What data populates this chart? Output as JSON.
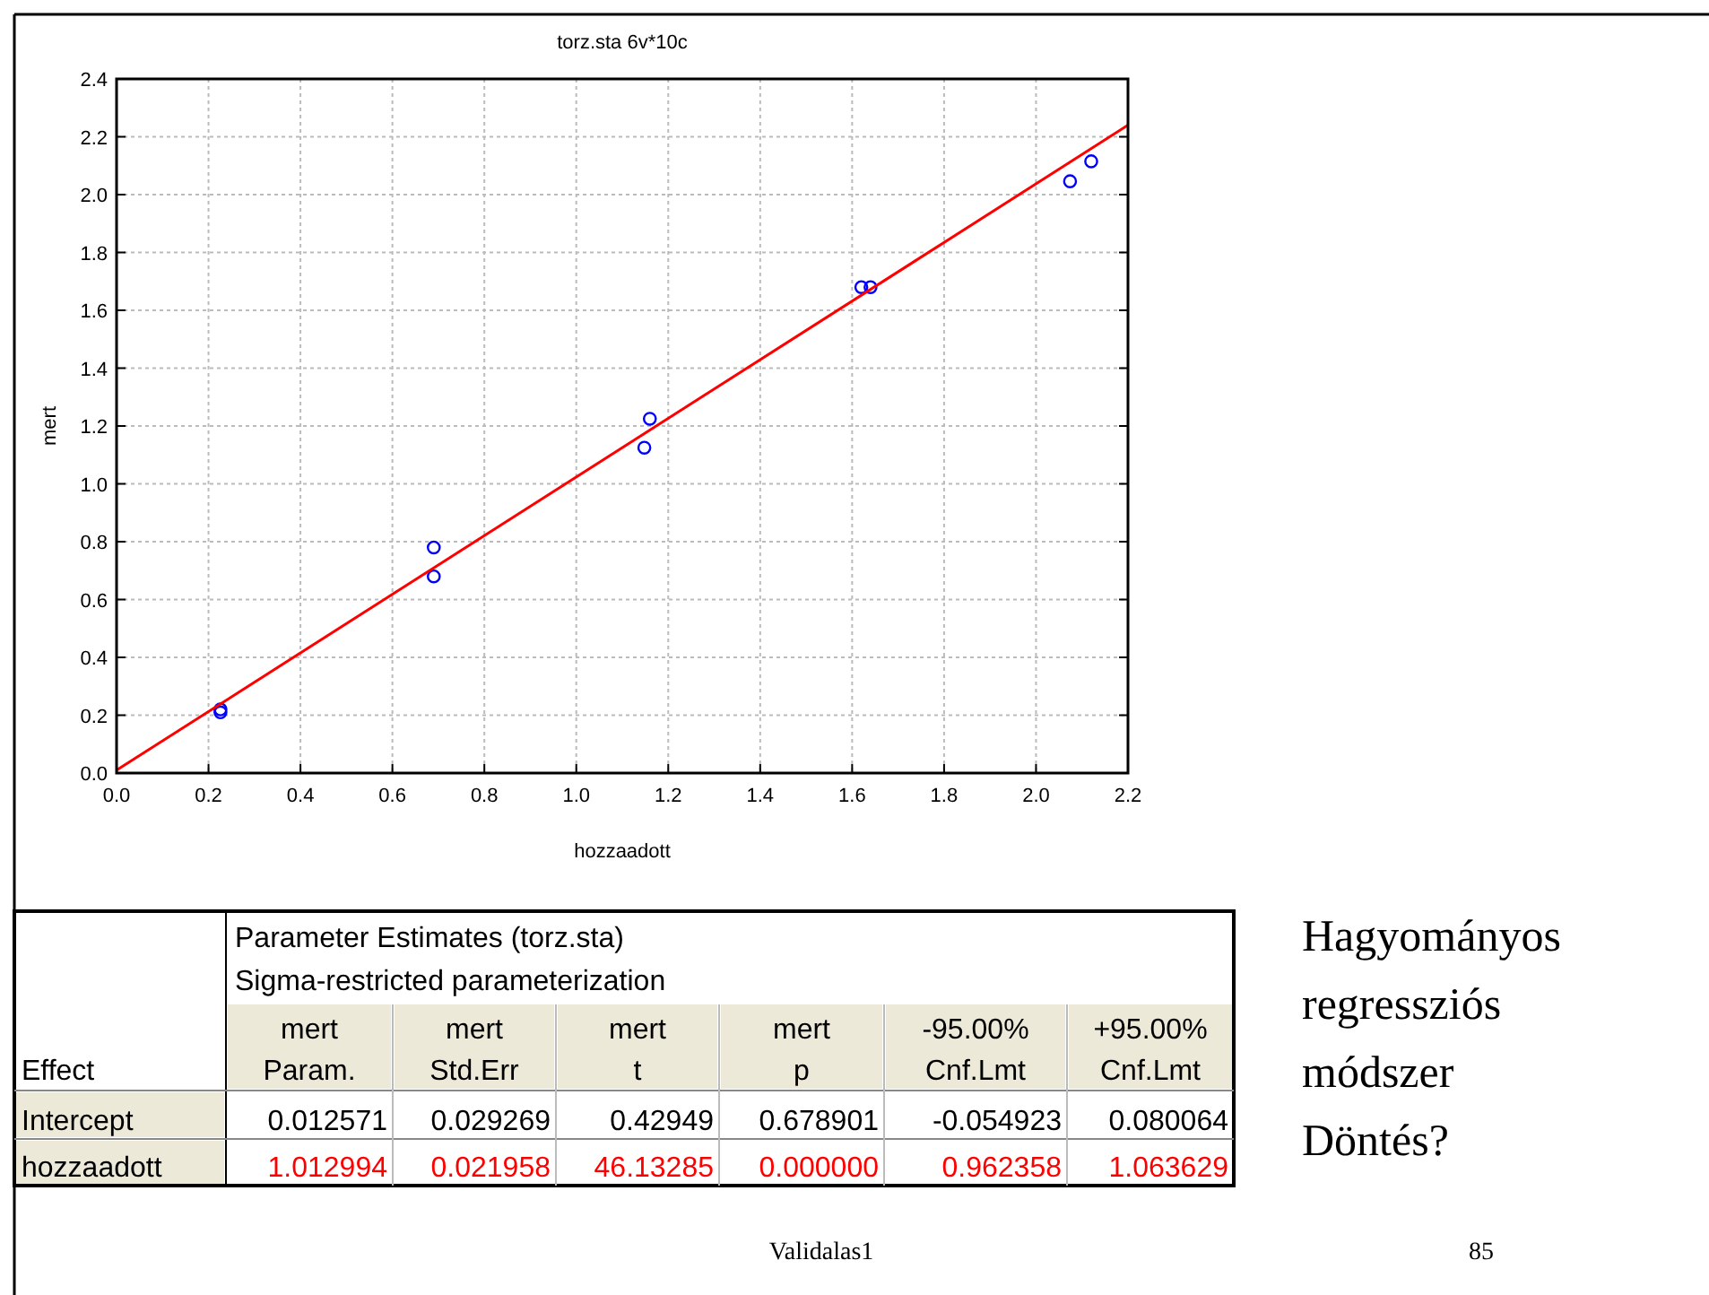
{
  "chart_data": [
    {
      "type": "scatter",
      "title": "torz.sta 6v*10c",
      "xlabel": "hozzaadott",
      "ylabel": "mert",
      "xlim": [
        0,
        2.2
      ],
      "ylim": [
        0,
        2.4
      ],
      "xticks": [
        {
          "value": 0,
          "label": "0.0"
        },
        0.2,
        0.4,
        0.6,
        0.8,
        {
          "value": 1,
          "label": "1.0"
        },
        1.2,
        1.4,
        1.6,
        1.8,
        {
          "value": 2,
          "label": "2.0"
        },
        2.2
      ],
      "yticks": [
        {
          "value": 0,
          "label": "0.0"
        },
        0.2,
        0.4,
        0.6,
        0.8,
        {
          "value": 1,
          "label": "1.0"
        },
        1.2,
        1.4,
        1.6,
        1.8,
        {
          "value": 2,
          "label": "2.0"
        },
        2.2,
        2.4
      ],
      "grid": true,
      "series": [
        {
          "type": "scatter",
          "marker": "circle",
          "color": "#0000ff",
          "x": [
            0.226,
            0.226,
            0.69,
            0.69,
            1.148,
            1.16,
            1.62,
            1.64,
            2.074,
            2.12
          ],
          "values": [
            0.21,
            0.22,
            0.68,
            0.78,
            1.125,
            1.225,
            1.68,
            1.68,
            2.046,
            2.115
          ]
        },
        {
          "type": "line",
          "marker": "none",
          "color": "#ff0000",
          "x": [
            0,
            2.2
          ],
          "values": [
            0.01,
            2.24
          ]
        }
      ]
    },
    {
      "type": "other",
      "title": "Parameter Estimates (torz.sta)",
      "subtitle": "Sigma-restricted parameterization",
      "categories": [
        "Effect",
        "mert Param.",
        "mert Std.Err",
        "mert t",
        "mert p",
        "-95.00% Cnf.Lmt",
        "+95.00% Cnf.Lmt"
      ],
      "y_categories": [
        "Intercept",
        "hozzaadott"
      ],
      "cell_labels": [
        [
          "0.012571",
          "0.029269",
          "0.42949",
          "0.678901",
          "-0.054923",
          "0.080064"
        ],
        [
          "1.012994",
          "0.021958",
          "46.13285",
          "0.000000",
          "0.962358",
          "1.063629"
        ]
      ],
      "annotations": [
        "Hagyományos",
        "regressziós",
        "módszer",
        "Döntés?",
        "Validalas1",
        "85"
      ]
    }
  ]
}
